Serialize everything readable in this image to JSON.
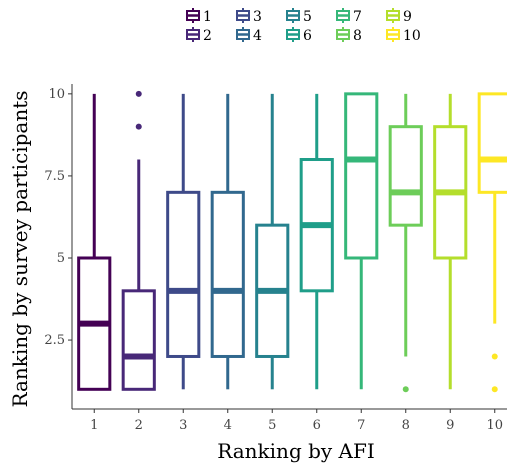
{
  "chart_data": {
    "type": "boxplot",
    "title": "",
    "xlabel": "Ranking by AFI",
    "ylabel": "Ranking by survey participants",
    "categories": [
      "1",
      "2",
      "3",
      "4",
      "5",
      "6",
      "7",
      "8",
      "9",
      "10"
    ],
    "ylim": [
      0.4,
      10.3
    ],
    "yticks": [
      2.5,
      5,
      7.5,
      10
    ],
    "ytick_labels": [
      "2.5",
      "5",
      "7.5",
      "10"
    ],
    "grid": false,
    "legend_position": "top",
    "series": [
      {
        "name": "1",
        "color": "#440154",
        "min": 1,
        "q1": 1,
        "median": 3,
        "q3": 5,
        "max": 10,
        "outliers": []
      },
      {
        "name": "2",
        "color": "#482878",
        "min": 1,
        "q1": 1,
        "median": 2,
        "q3": 4,
        "max": 8,
        "outliers": [
          9,
          10
        ]
      },
      {
        "name": "3",
        "color": "#3E4A89",
        "min": 1,
        "q1": 2,
        "median": 4,
        "q3": 7,
        "max": 10,
        "outliers": []
      },
      {
        "name": "4",
        "color": "#31688E",
        "min": 1,
        "q1": 2,
        "median": 4,
        "q3": 7,
        "max": 10,
        "outliers": []
      },
      {
        "name": "5",
        "color": "#26828E",
        "min": 1,
        "q1": 2,
        "median": 4,
        "q3": 6,
        "max": 10,
        "outliers": []
      },
      {
        "name": "6",
        "color": "#1F9E89",
        "min": 1,
        "q1": 4,
        "median": 6,
        "q3": 8,
        "max": 10,
        "outliers": []
      },
      {
        "name": "7",
        "color": "#35B779",
        "min": 1,
        "q1": 5,
        "median": 8,
        "q3": 10,
        "max": 10,
        "outliers": []
      },
      {
        "name": "8",
        "color": "#6DCD59",
        "min": 2,
        "q1": 6,
        "median": 7,
        "q3": 9,
        "max": 10,
        "outliers": [
          1
        ]
      },
      {
        "name": "9",
        "color": "#B4DE2C",
        "min": 1,
        "q1": 5,
        "median": 7,
        "q3": 9,
        "max": 10,
        "outliers": []
      },
      {
        "name": "10",
        "color": "#FDE725",
        "min": 3,
        "q1": 7,
        "median": 8,
        "q3": 10,
        "max": 10,
        "outliers": [
          1,
          2
        ]
      }
    ]
  }
}
